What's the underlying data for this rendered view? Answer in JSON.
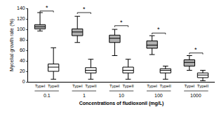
{
  "chart_data": {
    "type": "box",
    "xlabel": "Concentrations of fludioxonil (mg/L)",
    "ylabel": "Mycelial growth rate (%)",
    "categories": [
      "0.1",
      "1",
      "10",
      "100",
      "1000"
    ],
    "series": [
      {
        "name": "TypeI",
        "color": "#b0b0b0",
        "q1": [
          101,
          88,
          75,
          64,
          30
        ],
        "median": [
          105,
          95,
          83,
          70,
          37
        ],
        "q3": [
          109,
          101,
          89,
          78,
          42
        ],
        "lower": [
          97,
          75,
          50,
          52,
          22
        ],
        "upper": [
          132,
          125,
          100,
          88,
          50
        ]
      },
      {
        "name": "TypeII",
        "color": "#ffffff",
        "q1": [
          20,
          17,
          17,
          17,
          8
        ],
        "median": [
          28,
          22,
          22,
          22,
          13
        ],
        "q3": [
          34,
          27,
          28,
          25,
          17
        ],
        "lower": [
          5,
          5,
          5,
          5,
          2
        ],
        "upper": [
          65,
          43,
          43,
          30,
          22
        ]
      }
    ],
    "ylim": [
      0,
      140
    ],
    "yticks": [
      0,
      20,
      40,
      60,
      80,
      100,
      120,
      140
    ],
    "grid": false,
    "annotations": [
      {
        "text": "*",
        "category": "0.1",
        "y": 135
      },
      {
        "text": "*",
        "category": "1",
        "y": 132
      },
      {
        "text": "*",
        "category": "10",
        "y": 107
      },
      {
        "text": "*",
        "category": "100",
        "y": 93
      },
      {
        "text": "*",
        "category": "1000",
        "y": 55
      }
    ]
  }
}
